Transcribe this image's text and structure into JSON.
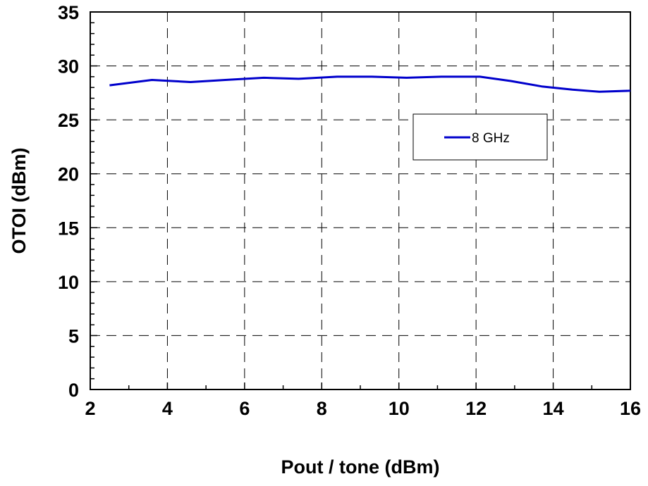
{
  "chart_data": {
    "type": "line",
    "xlabel": "Pout / tone (dBm)",
    "ylabel": "OTOI (dBm)",
    "xlim": [
      2,
      16
    ],
    "ylim": [
      0,
      35
    ],
    "xticks": [
      2,
      4,
      6,
      8,
      10,
      12,
      14,
      16
    ],
    "yticks": [
      0,
      5,
      10,
      15,
      20,
      25,
      30,
      35
    ],
    "grid": true,
    "legend_position": "right",
    "series": [
      {
        "name": "8 GHz",
        "color": "#0000cc",
        "x": [
          2.5,
          3.6,
          4.6,
          5.5,
          6.5,
          7.4,
          8.4,
          9.3,
          10.2,
          11.1,
          12.1,
          12.9,
          13.7,
          14.5,
          15.2,
          16.0
        ],
        "y": [
          28.2,
          28.7,
          28.5,
          28.7,
          28.9,
          28.8,
          29.0,
          29.0,
          28.9,
          29.0,
          29.0,
          28.6,
          28.1,
          27.8,
          27.6,
          27.7
        ]
      }
    ]
  }
}
